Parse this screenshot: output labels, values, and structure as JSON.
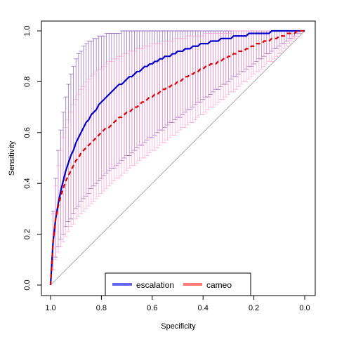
{
  "chart_data": {
    "type": "line",
    "title": "",
    "xlabel": "Specificity",
    "ylabel": "Sensitivity",
    "xlim": [
      1.0,
      0.0
    ],
    "ylim": [
      0.0,
      1.0
    ],
    "x_reversed": true,
    "x_ticks": [
      "1.0",
      "0.8",
      "0.6",
      "0.4",
      "0.2",
      "0.0"
    ],
    "y_ticks": [
      "0.0",
      "0.2",
      "0.4",
      "0.6",
      "0.8",
      "1.0"
    ],
    "grid": false,
    "legend_position": "bottom-center",
    "diagonal_reference": true,
    "series": [
      {
        "name": "escalation",
        "color": "#0000cc",
        "legend_color": "#6666ee",
        "band_color": "#7744aa",
        "line_style": "solid",
        "specificity": [
          1.0,
          0.99,
          0.98,
          0.97,
          0.96,
          0.95,
          0.94,
          0.93,
          0.92,
          0.91,
          0.9,
          0.89,
          0.88,
          0.87,
          0.86,
          0.85,
          0.84,
          0.83,
          0.82,
          0.81,
          0.8,
          0.79,
          0.78,
          0.77,
          0.76,
          0.75,
          0.74,
          0.73,
          0.72,
          0.71,
          0.7,
          0.69,
          0.68,
          0.67,
          0.66,
          0.65,
          0.64,
          0.63,
          0.62,
          0.61,
          0.6,
          0.59,
          0.58,
          0.57,
          0.56,
          0.55,
          0.54,
          0.53,
          0.52,
          0.51,
          0.5,
          0.49,
          0.48,
          0.47,
          0.46,
          0.45,
          0.44,
          0.43,
          0.42,
          0.41,
          0.4,
          0.39,
          0.38,
          0.37,
          0.36,
          0.35,
          0.34,
          0.33,
          0.32,
          0.31,
          0.3,
          0.29,
          0.28,
          0.27,
          0.26,
          0.25,
          0.24,
          0.23,
          0.22,
          0.21,
          0.2,
          0.19,
          0.18,
          0.17,
          0.16,
          0.15,
          0.14,
          0.13,
          0.12,
          0.11,
          0.1,
          0.09,
          0.08,
          0.07,
          0.06,
          0.05,
          0.04,
          0.03,
          0.02,
          0.01,
          0.0
        ],
        "sensitivity": [
          0.0,
          0.17,
          0.26,
          0.32,
          0.37,
          0.41,
          0.45,
          0.48,
          0.51,
          0.53,
          0.56,
          0.58,
          0.6,
          0.62,
          0.64,
          0.65,
          0.67,
          0.68,
          0.69,
          0.71,
          0.72,
          0.73,
          0.74,
          0.75,
          0.76,
          0.77,
          0.78,
          0.79,
          0.79,
          0.8,
          0.81,
          0.82,
          0.82,
          0.83,
          0.84,
          0.84,
          0.85,
          0.86,
          0.86,
          0.87,
          0.87,
          0.88,
          0.88,
          0.89,
          0.89,
          0.9,
          0.9,
          0.9,
          0.91,
          0.91,
          0.92,
          0.92,
          0.92,
          0.93,
          0.93,
          0.93,
          0.94,
          0.94,
          0.94,
          0.95,
          0.95,
          0.95,
          0.95,
          0.96,
          0.96,
          0.96,
          0.96,
          0.97,
          0.97,
          0.97,
          0.97,
          0.97,
          0.98,
          0.98,
          0.98,
          0.98,
          0.98,
          0.98,
          0.99,
          0.99,
          0.99,
          0.99,
          0.99,
          0.99,
          0.99,
          0.99,
          0.99,
          1.0,
          1.0,
          1.0,
          1.0,
          1.0,
          1.0,
          1.0,
          1.0,
          1.0,
          1.0,
          1.0,
          1.0,
          1.0,
          1.0
        ],
        "ci_lower": [
          0.0,
          0.06,
          0.11,
          0.15,
          0.18,
          0.2,
          0.23,
          0.25,
          0.26,
          0.28,
          0.3,
          0.31,
          0.33,
          0.34,
          0.35,
          0.36,
          0.38,
          0.39,
          0.4,
          0.41,
          0.42,
          0.43,
          0.44,
          0.45,
          0.46,
          0.46,
          0.47,
          0.48,
          0.49,
          0.5,
          0.51,
          0.51,
          0.52,
          0.53,
          0.54,
          0.55,
          0.55,
          0.56,
          0.57,
          0.58,
          0.58,
          0.59,
          0.6,
          0.61,
          0.61,
          0.62,
          0.63,
          0.64,
          0.64,
          0.65,
          0.66,
          0.66,
          0.67,
          0.68,
          0.69,
          0.69,
          0.7,
          0.71,
          0.72,
          0.72,
          0.73,
          0.74,
          0.74,
          0.75,
          0.76,
          0.77,
          0.77,
          0.78,
          0.79,
          0.79,
          0.8,
          0.81,
          0.82,
          0.82,
          0.83,
          0.84,
          0.84,
          0.85,
          0.86,
          0.86,
          0.87,
          0.88,
          0.89,
          0.89,
          0.9,
          0.91,
          0.91,
          0.92,
          0.93,
          0.93,
          0.94,
          0.95,
          0.95,
          0.96,
          0.97,
          0.97,
          0.98,
          0.99,
          0.99,
          1.0,
          1.0
        ],
        "ci_upper": [
          0.0,
          0.29,
          0.42,
          0.53,
          0.61,
          0.68,
          0.74,
          0.79,
          0.83,
          0.86,
          0.89,
          0.91,
          0.92,
          0.94,
          0.95,
          0.96,
          0.96,
          0.97,
          0.97,
          0.98,
          0.98,
          0.98,
          0.99,
          0.99,
          0.99,
          0.99,
          0.99,
          0.99,
          1.0,
          1.0,
          1.0,
          1.0,
          1.0,
          1.0,
          1.0,
          1.0,
          1.0,
          1.0,
          1.0,
          1.0,
          1.0,
          1.0,
          1.0,
          1.0,
          1.0,
          1.0,
          1.0,
          1.0,
          1.0,
          1.0,
          1.0,
          1.0,
          1.0,
          1.0,
          1.0,
          1.0,
          1.0,
          1.0,
          1.0,
          1.0,
          1.0,
          1.0,
          1.0,
          1.0,
          1.0,
          1.0,
          1.0,
          1.0,
          1.0,
          1.0,
          1.0,
          1.0,
          1.0,
          1.0,
          1.0,
          1.0,
          1.0,
          1.0,
          1.0,
          1.0,
          1.0,
          1.0,
          1.0,
          1.0,
          1.0,
          1.0,
          1.0,
          1.0,
          1.0,
          1.0,
          1.0,
          1.0,
          1.0,
          1.0,
          1.0,
          1.0,
          1.0,
          1.0,
          1.0,
          1.0,
          1.0
        ]
      },
      {
        "name": "cameo",
        "color": "#dd0000",
        "legend_color": "#ff7777",
        "band_color": "#ff99cc",
        "line_style": "dashed",
        "specificity": [
          1.0,
          0.99,
          0.98,
          0.97,
          0.96,
          0.95,
          0.94,
          0.93,
          0.92,
          0.91,
          0.9,
          0.89,
          0.88,
          0.87,
          0.86,
          0.85,
          0.84,
          0.83,
          0.82,
          0.81,
          0.8,
          0.79,
          0.78,
          0.77,
          0.76,
          0.75,
          0.74,
          0.73,
          0.72,
          0.71,
          0.7,
          0.69,
          0.68,
          0.67,
          0.66,
          0.65,
          0.64,
          0.63,
          0.62,
          0.61,
          0.6,
          0.59,
          0.58,
          0.57,
          0.56,
          0.55,
          0.54,
          0.53,
          0.52,
          0.51,
          0.5,
          0.49,
          0.48,
          0.47,
          0.46,
          0.45,
          0.44,
          0.43,
          0.42,
          0.41,
          0.4,
          0.39,
          0.38,
          0.37,
          0.36,
          0.35,
          0.34,
          0.33,
          0.32,
          0.31,
          0.3,
          0.29,
          0.28,
          0.27,
          0.26,
          0.25,
          0.24,
          0.23,
          0.22,
          0.21,
          0.2,
          0.19,
          0.18,
          0.17,
          0.16,
          0.15,
          0.14,
          0.13,
          0.12,
          0.11,
          0.1,
          0.09,
          0.08,
          0.07,
          0.06,
          0.05,
          0.04,
          0.03,
          0.02,
          0.01,
          0.0
        ],
        "sensitivity": [
          0.0,
          0.17,
          0.26,
          0.31,
          0.35,
          0.38,
          0.41,
          0.43,
          0.45,
          0.47,
          0.49,
          0.5,
          0.52,
          0.53,
          0.54,
          0.55,
          0.56,
          0.57,
          0.58,
          0.59,
          0.6,
          0.61,
          0.62,
          0.62,
          0.63,
          0.64,
          0.65,
          0.66,
          0.66,
          0.67,
          0.68,
          0.68,
          0.69,
          0.7,
          0.7,
          0.71,
          0.72,
          0.72,
          0.73,
          0.74,
          0.74,
          0.75,
          0.75,
          0.76,
          0.77,
          0.77,
          0.78,
          0.78,
          0.79,
          0.79,
          0.8,
          0.8,
          0.81,
          0.82,
          0.82,
          0.83,
          0.83,
          0.84,
          0.84,
          0.85,
          0.85,
          0.86,
          0.86,
          0.87,
          0.87,
          0.87,
          0.88,
          0.88,
          0.89,
          0.89,
          0.9,
          0.9,
          0.91,
          0.91,
          0.92,
          0.92,
          0.92,
          0.93,
          0.93,
          0.94,
          0.94,
          0.95,
          0.95,
          0.95,
          0.96,
          0.96,
          0.96,
          0.97,
          0.97,
          0.97,
          0.98,
          0.98,
          0.98,
          0.99,
          0.99,
          0.99,
          0.99,
          1.0,
          1.0,
          1.0,
          1.0
        ],
        "ci_lower": [
          0.0,
          0.06,
          0.1,
          0.13,
          0.15,
          0.17,
          0.19,
          0.21,
          0.23,
          0.24,
          0.26,
          0.27,
          0.28,
          0.29,
          0.3,
          0.31,
          0.32,
          0.33,
          0.34,
          0.35,
          0.36,
          0.37,
          0.38,
          0.39,
          0.4,
          0.41,
          0.42,
          0.42,
          0.43,
          0.44,
          0.45,
          0.46,
          0.47,
          0.47,
          0.48,
          0.49,
          0.5,
          0.5,
          0.51,
          0.52,
          0.53,
          0.53,
          0.54,
          0.55,
          0.56,
          0.56,
          0.57,
          0.58,
          0.59,
          0.59,
          0.6,
          0.61,
          0.62,
          0.62,
          0.63,
          0.64,
          0.64,
          0.65,
          0.66,
          0.67,
          0.67,
          0.68,
          0.69,
          0.7,
          0.7,
          0.71,
          0.72,
          0.73,
          0.73,
          0.74,
          0.75,
          0.76,
          0.76,
          0.77,
          0.78,
          0.79,
          0.8,
          0.8,
          0.81,
          0.82,
          0.83,
          0.84,
          0.84,
          0.85,
          0.86,
          0.87,
          0.88,
          0.88,
          0.89,
          0.9,
          0.91,
          0.92,
          0.93,
          0.94,
          0.95,
          0.96,
          0.97,
          0.98,
          0.99,
          1.0,
          1.0
        ],
        "ci_upper": [
          0.0,
          0.28,
          0.39,
          0.47,
          0.53,
          0.58,
          0.62,
          0.65,
          0.68,
          0.71,
          0.73,
          0.75,
          0.77,
          0.78,
          0.8,
          0.81,
          0.82,
          0.83,
          0.84,
          0.85,
          0.85,
          0.86,
          0.87,
          0.88,
          0.88,
          0.89,
          0.89,
          0.9,
          0.9,
          0.91,
          0.91,
          0.92,
          0.92,
          0.92,
          0.93,
          0.93,
          0.93,
          0.94,
          0.94,
          0.94,
          0.95,
          0.95,
          0.95,
          0.95,
          0.96,
          0.96,
          0.96,
          0.96,
          0.96,
          0.97,
          0.97,
          0.97,
          0.97,
          0.97,
          0.98,
          0.98,
          0.98,
          0.98,
          0.98,
          0.98,
          0.98,
          0.99,
          0.99,
          0.99,
          0.99,
          0.99,
          0.99,
          0.99,
          0.99,
          0.99,
          0.99,
          0.99,
          1.0,
          1.0,
          1.0,
          1.0,
          1.0,
          1.0,
          1.0,
          1.0,
          1.0,
          1.0,
          1.0,
          1.0,
          1.0,
          1.0,
          1.0,
          1.0,
          1.0,
          1.0,
          1.0,
          1.0,
          1.0,
          1.0,
          1.0,
          1.0,
          1.0,
          1.0,
          1.0,
          1.0,
          1.0
        ]
      }
    ]
  }
}
